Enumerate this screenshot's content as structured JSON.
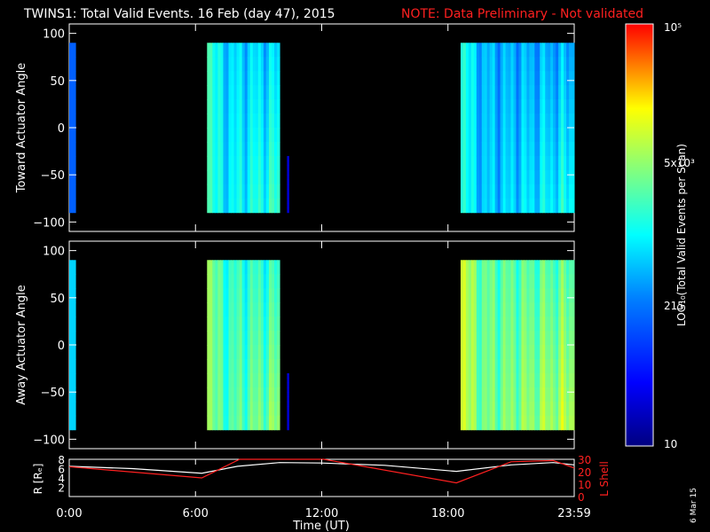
{
  "header": {
    "title": "TWINS1: Total Valid Events. 16 Feb (day  47), 2015",
    "note": "NOTE: Data Preliminary - Not validated"
  },
  "colors": {
    "background": "#000000",
    "note_red": "#ff2020",
    "axis": "#ffffff",
    "r_line": "#ffffff",
    "lshell_line": "#ff2020"
  },
  "panels": [
    {
      "name": "toward",
      "ylabel": "Toward Actuator Angle",
      "yticks": [
        "100",
        "50",
        "0",
        "−50",
        "−100"
      ],
      "ylim": [
        -110,
        110
      ]
    },
    {
      "name": "away",
      "ylabel": "Away Actuator Angle",
      "yticks": [
        "100",
        "50",
        "0",
        "−50",
        "−100"
      ],
      "ylim": [
        -110,
        110
      ]
    }
  ],
  "colorbar": {
    "label": "LOG₁₀(Total Valid Events per Scan)",
    "ticks": [
      "10⁵",
      "5x10³",
      "215",
      "10"
    ]
  },
  "orbit": {
    "left_label": "R [Rₑ]",
    "right_label": "L Shell",
    "left_ticks": [
      "8",
      "6",
      "4",
      "2"
    ],
    "right_ticks": [
      "30",
      "20",
      "10",
      "0"
    ]
  },
  "xaxis": {
    "label": "Time (UT)",
    "ticks": [
      "0:00",
      "6:00",
      "12:00",
      "18:00",
      "23:59"
    ]
  },
  "footer": {
    "date_stamp": "6 Mar 15"
  },
  "chart_data": {
    "type": "heatmap",
    "x_range_hours": [
      0,
      24
    ],
    "x_ticks_hours": [
      0,
      6,
      12,
      18,
      24
    ],
    "y_range_deg": [
      -110,
      110
    ],
    "colorscale": "log",
    "colorbar_range": [
      10,
      100000
    ],
    "intervals": [
      {
        "panel": "toward",
        "start_h": 0.0,
        "end_h": 0.3,
        "y_range": [
          -90,
          90
        ],
        "level": 0.3
      },
      {
        "panel": "toward",
        "start_h": 6.55,
        "end_h": 10.0,
        "y_range": [
          -90,
          90
        ],
        "level": 0.45
      },
      {
        "panel": "toward",
        "start_h": 10.35,
        "end_h": 10.38,
        "y_range": [
          -90,
          -30
        ],
        "level": 0.1
      },
      {
        "panel": "toward",
        "start_h": 18.6,
        "end_h": 24.0,
        "y_range": [
          -90,
          90
        ],
        "level": 0.4
      },
      {
        "panel": "away",
        "start_h": 0.0,
        "end_h": 0.3,
        "y_range": [
          -90,
          90
        ],
        "level": 0.45
      },
      {
        "panel": "away",
        "start_h": 6.55,
        "end_h": 10.0,
        "y_range": [
          -90,
          90
        ],
        "level": 0.55
      },
      {
        "panel": "away",
        "start_h": 10.35,
        "end_h": 10.38,
        "y_range": [
          -90,
          -30
        ],
        "level": 0.1
      },
      {
        "panel": "away",
        "start_h": 18.6,
        "end_h": 24.0,
        "y_range": [
          -90,
          90
        ],
        "level": 0.6
      }
    ],
    "series": [
      {
        "axis": "R",
        "ylim": [
          0,
          8
        ],
        "x": [
          0,
          3,
          6.3,
          8,
          10,
          12,
          15,
          18.4,
          21,
          23,
          24
        ],
        "y": [
          6.5,
          6.0,
          5.0,
          6.5,
          7.3,
          7.2,
          6.7,
          5.4,
          6.8,
          7.3,
          6.8
        ]
      },
      {
        "axis": "L Shell",
        "ylim": [
          0,
          30
        ],
        "x": [
          0,
          6.3,
          8.1,
          12.1,
          18.4,
          21,
          23,
          24
        ],
        "y": [
          24,
          15,
          30,
          30,
          11,
          28,
          29,
          23
        ]
      }
    ]
  }
}
